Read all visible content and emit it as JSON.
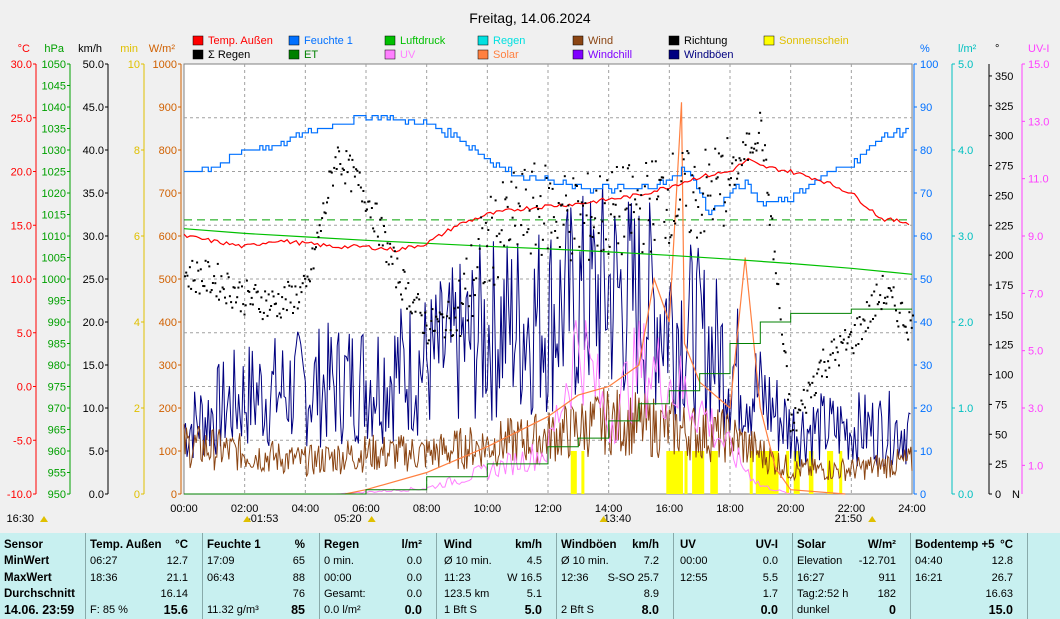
{
  "chart_data": {
    "type": "line",
    "title": "Freitag, 14.06.2024",
    "legend": [
      {
        "name": "Temp. Außen",
        "color": "#ff0000"
      },
      {
        "name": "Feuchte 1",
        "color": "#0070ff"
      },
      {
        "name": "Luftdruck",
        "color": "#00c000"
      },
      {
        "name": "Regen",
        "color": "#00e0e0"
      },
      {
        "name": "Wind",
        "color": "#8b4513"
      },
      {
        "name": "Richtung",
        "color": "#000000"
      },
      {
        "name": "Sonnenschein",
        "color": "#ffff00"
      },
      {
        "name": "Σ Regen",
        "color": "#000000"
      },
      {
        "name": "ET",
        "color": "#008000"
      },
      {
        "name": "UV",
        "color": "#ff80ff"
      },
      {
        "name": "Solar",
        "color": "#ff8040"
      },
      {
        "name": "Windchill",
        "color": "#8000ff"
      },
      {
        "name": "Windböen",
        "color": "#000080"
      }
    ],
    "axes": {
      "temp": {
        "unit": "°C",
        "color": "#ff0000",
        "ticks": [
          "30.0",
          "25.0",
          "20.0",
          "15.0",
          "10.0",
          "5.0",
          "0.0",
          "-5.0",
          "-10.0"
        ]
      },
      "pressure": {
        "unit": "hPa",
        "color": "#00a000",
        "ticks": [
          "1050",
          "1045",
          "1040",
          "1035",
          "1030",
          "1025",
          "1020",
          "1015",
          "1010",
          "1005",
          "1000",
          "995",
          "990",
          "985",
          "980",
          "975",
          "970",
          "965",
          "960",
          "955",
          "950"
        ]
      },
      "wind": {
        "unit": "km/h",
        "color": "#000000",
        "ticks": [
          "50.0",
          "45.0",
          "40.0",
          "35.0",
          "30.0",
          "25.0",
          "20.0",
          "15.0",
          "10.0",
          "5.0",
          "0.0"
        ]
      },
      "sun_min": {
        "unit": "min",
        "color": "#e0c000",
        "ticks": [
          "10",
          "8",
          "6",
          "4",
          "2",
          "0"
        ]
      },
      "solar": {
        "unit": "W/m²",
        "color": "#d06000",
        "ticks": [
          "1000",
          "900",
          "800",
          "700",
          "600",
          "500",
          "400",
          "300",
          "200",
          "100",
          "0"
        ]
      },
      "humidity": {
        "unit": "%",
        "color": "#0070ff",
        "ticks": [
          "100",
          "90",
          "80",
          "70",
          "60",
          "50",
          "40",
          "30",
          "20",
          "10",
          "0"
        ]
      },
      "rain": {
        "unit": "l/m²",
        "color": "#00c0c0",
        "ticks": [
          "5.0",
          "4.0",
          "3.0",
          "2.0",
          "1.0",
          "0.0"
        ]
      },
      "direction": {
        "unit": "°",
        "color": "#000000",
        "ticks": [
          "350",
          "325",
          "300",
          "275",
          "250",
          "225",
          "200",
          "175",
          "150",
          "125",
          "100",
          "75",
          "50",
          "25",
          "0"
        ],
        "zero_label": "N"
      },
      "uv": {
        "unit": "UV-I",
        "color": "#ff40ff",
        "ticks": [
          "15.0",
          "13.0",
          "11.0",
          "9.0",
          "7.0",
          "5.0",
          "3.0",
          "1.0"
        ]
      }
    },
    "x_ticks": [
      "00:00",
      "02:00",
      "04:00",
      "06:00",
      "08:00",
      "10:00",
      "12:00",
      "14:00",
      "16:00",
      "18:00",
      "20:00",
      "22:00",
      "24:00"
    ],
    "markers": [
      "16:30",
      "-01:53",
      "05:20",
      "13:40",
      "21:50"
    ],
    "series": [
      {
        "name": "Temp. Außen",
        "axis": "temp",
        "x_hours": [
          0,
          1,
          2,
          3,
          4,
          5,
          6,
          7,
          8,
          9,
          10,
          11,
          12,
          13,
          14,
          15,
          16,
          17,
          18,
          18.6,
          19,
          20,
          21,
          22,
          23,
          24
        ],
        "values": [
          14.0,
          13.5,
          13.0,
          13.6,
          13.3,
          13.0,
          13.0,
          12.7,
          13.3,
          15.0,
          16.0,
          16.5,
          16.8,
          17.0,
          17.4,
          17.8,
          18.6,
          19.5,
          20.0,
          21.1,
          20.5,
          20.0,
          19.2,
          18.0,
          15.6,
          15.2
        ]
      },
      {
        "name": "Feuchte 1",
        "axis": "humidity",
        "x_hours": [
          0,
          1,
          2,
          3,
          4,
          5,
          6,
          7,
          8,
          9,
          10,
          11,
          12,
          13,
          14,
          15,
          16,
          16.5,
          17,
          17.3,
          18,
          18.5,
          19,
          20,
          21,
          22,
          23,
          24
        ],
        "values": [
          75,
          76,
          80,
          81,
          84,
          86,
          88,
          87,
          86,
          83,
          78,
          74,
          73,
          71,
          71,
          71,
          73,
          76,
          70,
          65,
          70,
          72,
          68,
          69,
          74,
          77,
          83,
          85
        ]
      },
      {
        "name": "Luftdruck",
        "axis": "pressure",
        "x_hours": [
          0,
          2,
          4,
          6,
          8,
          10,
          12,
          14,
          16,
          18,
          20,
          22,
          24
        ],
        "values": [
          1011.7,
          1010.6,
          1009.8,
          1009.0,
          1008.3,
          1007.6,
          1007.0,
          1006.3,
          1005.5,
          1004.6,
          1003.6,
          1002.5,
          1001.1
        ]
      },
      {
        "name": "ET",
        "axis": "rain",
        "x_hours": [
          0,
          6,
          8,
          10,
          12,
          13,
          14,
          15,
          16,
          17,
          18,
          19,
          20,
          22,
          24
        ],
        "values": [
          0.0,
          0.05,
          0.2,
          0.35,
          0.55,
          0.65,
          0.85,
          1.05,
          1.2,
          1.4,
          1.75,
          2.0,
          2.1,
          2.15,
          2.15
        ]
      },
      {
        "name": "Solar",
        "axis": "solar",
        "x_hours": [
          5.3,
          6,
          8,
          10,
          12,
          13,
          14,
          15,
          15.5,
          16,
          16.4,
          16.5,
          17,
          18,
          18.5,
          19,
          19.5,
          20,
          21.8
        ],
        "values": [
          0,
          10,
          50,
          110,
          180,
          230,
          250,
          300,
          500,
          400,
          911,
          350,
          260,
          200,
          550,
          200,
          60,
          10,
          0
        ]
      },
      {
        "name": "Richtung",
        "axis": "direction",
        "x_hours": [
          0,
          1,
          2,
          3,
          4,
          5,
          6,
          7,
          8,
          9,
          10,
          11,
          12,
          13,
          14,
          15,
          16,
          17,
          18,
          19,
          20,
          21,
          22,
          23,
          24
        ],
        "values": [
          185,
          180,
          165,
          160,
          170,
          285,
          250,
          185,
          140,
          150,
          210,
          235,
          240,
          230,
          235,
          240,
          250,
          250,
          265,
          310,
          55,
          110,
          130,
          170,
          140
        ]
      },
      {
        "name": "Wind",
        "axis": "wind",
        "x_hours": [
          0,
          2,
          4,
          6,
          8,
          10,
          12,
          14,
          16,
          18,
          20,
          22,
          24
        ],
        "values": [
          6,
          5,
          4,
          5,
          5,
          6,
          7,
          9,
          8,
          7,
          3,
          3,
          4
        ]
      },
      {
        "name": "Windböen",
        "axis": "wind",
        "x_hours": [
          0,
          2,
          4,
          6,
          8,
          10,
          12,
          14,
          16,
          18,
          20,
          22,
          24
        ],
        "values": [
          8,
          12,
          13,
          14,
          16,
          20,
          22,
          25,
          22,
          16,
          8,
          8,
          8
        ]
      },
      {
        "name": "UV",
        "axis": "uv",
        "x_hours": [
          5,
          8,
          10,
          12,
          13,
          14,
          15,
          16,
          17,
          18,
          19,
          20
        ],
        "values": [
          0,
          0.2,
          0.8,
          1.5,
          5.5,
          2.5,
          4.5,
          4.0,
          3.0,
          1.5,
          0.3,
          0
        ]
      }
    ],
    "sunshine_bars_hours": [
      [
        12.75,
        12.95
      ],
      [
        13.1,
        13.2
      ],
      [
        15.9,
        16.45
      ],
      [
        16.5,
        16.6
      ],
      [
        16.75,
        17.15
      ],
      [
        17.35,
        17.6
      ],
      [
        18.65,
        18.75
      ],
      [
        18.85,
        19.6
      ],
      [
        19.85,
        19.95
      ],
      [
        20.1,
        20.3
      ],
      [
        20.6,
        20.75
      ],
      [
        21.2,
        21.4
      ],
      [
        21.6,
        21.7
      ]
    ],
    "reference_line": {
      "axis": "temp",
      "value": 15.5,
      "style": "dashed",
      "color": "#00a000"
    }
  },
  "stats": {
    "sensor": {
      "header": "Sensor",
      "rows": [
        "MinWert",
        "MaxWert",
        "Durchschnitt"
      ],
      "date": "14.06.  23:59"
    },
    "temp": {
      "title": "Temp. Außen",
      "unit": "°C",
      "rows": [
        [
          "06:27",
          "12.7"
        ],
        [
          "18:36",
          "21.1"
        ],
        [
          "",
          "16.14"
        ]
      ],
      "foot_left": "F: 85 %",
      "foot_right": "15.6"
    },
    "humidity": {
      "title": "Feuchte 1",
      "unit": "%",
      "rows": [
        [
          "17:09",
          "65"
        ],
        [
          "06:43",
          "88"
        ],
        [
          "",
          "76"
        ]
      ],
      "foot_left": "11.32 g/m³",
      "foot_right": "85"
    },
    "rain": {
      "title": "Regen",
      "unit": "l/m²",
      "rows": [
        [
          "0 min.",
          "0.0"
        ],
        [
          "00:00",
          "0.0"
        ],
        [
          "Gesamt:",
          "0.0"
        ]
      ],
      "foot_left": "0.0 l/m²",
      "foot_right": "0.0"
    },
    "wind": {
      "title": "Wind",
      "unit": "km/h",
      "rows": [
        [
          "Ø 10 min.",
          "4.5"
        ],
        [
          "11:23",
          "W 16.5"
        ],
        [
          "123.5 km",
          "5.1"
        ]
      ],
      "foot_left": "1 Bft S",
      "foot_right": "5.0"
    },
    "gusts": {
      "title": "Windböen",
      "unit": "km/h",
      "rows": [
        [
          "Ø 10 min.",
          "7.2"
        ],
        [
          "12:36",
          "S-SO 25.7"
        ],
        [
          "",
          "8.9"
        ]
      ],
      "foot_left": "2 Bft S",
      "foot_right": "8.0"
    },
    "uv": {
      "title": "UV",
      "unit": "UV-I",
      "rows": [
        [
          "00:00",
          "0.0"
        ],
        [
          "12:55",
          "5.5"
        ],
        [
          "",
          "1.7"
        ]
      ],
      "foot_left": "",
      "foot_right": "0.0"
    },
    "solar": {
      "title": "Solar",
      "unit": "W/m²",
      "rows": [
        [
          "Elevation",
          "-12.701"
        ],
        [
          "16:27",
          "911"
        ],
        [
          "Tag:2:52 h",
          "182"
        ]
      ],
      "foot_left": "dunkel",
      "foot_right": "0"
    },
    "soil": {
      "title": "Bodentemp +5",
      "unit": "°C",
      "rows": [
        [
          "04:40",
          "12.8"
        ],
        [
          "16:21",
          "26.7"
        ],
        [
          "",
          "16.63"
        ]
      ],
      "foot_left": "",
      "foot_right": "15.0"
    }
  }
}
